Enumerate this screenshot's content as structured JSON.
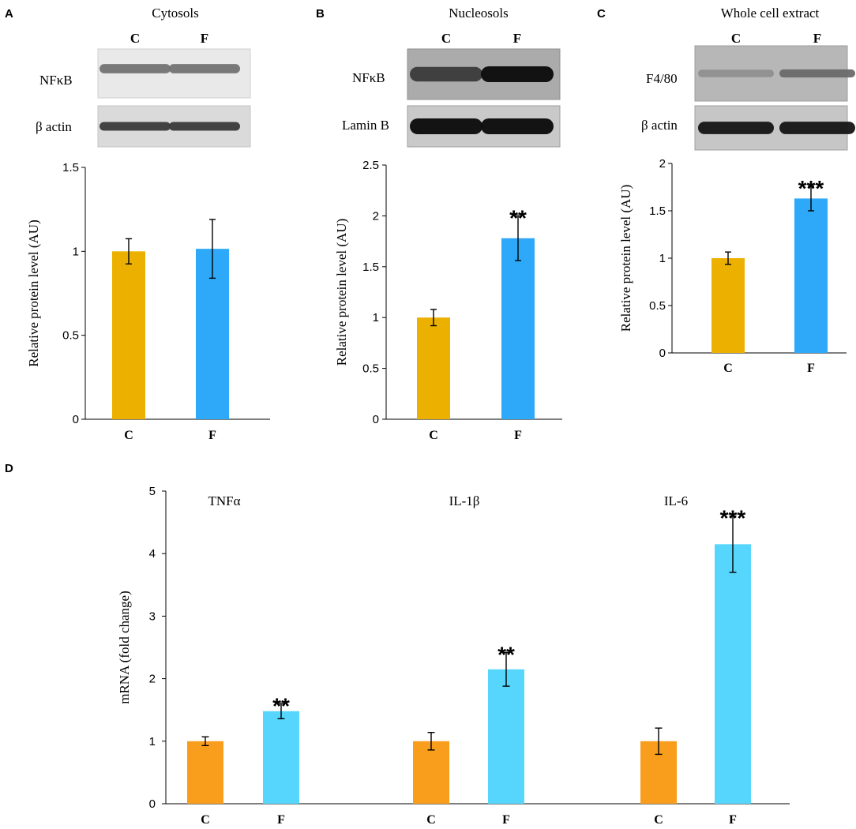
{
  "panels": [
    {
      "letter": "A",
      "title": "Cytosols",
      "lane_labels": [
        "C",
        "F"
      ],
      "blots": [
        {
          "label": "NFκB",
          "intensities": [
            0.45,
            0.45
          ]
        },
        {
          "label": "β actin",
          "intensities": [
            0.75,
            0.75
          ]
        }
      ]
    },
    {
      "letter": "B",
      "title": "Nucleosols",
      "lane_labels": [
        "C",
        "F"
      ],
      "blots": [
        {
          "label": "NFκB",
          "intensities": [
            0.75,
            1.0
          ]
        },
        {
          "label": "Lamin B",
          "intensities": [
            1.0,
            1.0
          ]
        }
      ]
    },
    {
      "letter": "C",
      "title": "Whole cell extract",
      "lane_labels": [
        "C",
        "F"
      ],
      "blots": [
        {
          "label": "F4/80",
          "intensities": [
            0.3,
            0.5
          ]
        },
        {
          "label": "β actin",
          "intensities": [
            0.95,
            0.95
          ]
        }
      ]
    },
    {
      "letter": "D",
      "title": "",
      "lane_labels": [],
      "blots": []
    }
  ],
  "chart_data": [
    {
      "panel": "A",
      "type": "bar",
      "categories": [
        "C",
        "F"
      ],
      "values": [
        1.0,
        1.015
      ],
      "errors": [
        0.075,
        0.175
      ],
      "significance": [
        "",
        ""
      ],
      "colors": [
        "#ecb000",
        "#2ea8f8"
      ],
      "ylabel": "Relative  protein level (AU)",
      "ylim": [
        0,
        1.5
      ],
      "yticks": [
        0,
        0.5,
        1,
        1.5
      ],
      "ytick_labels": [
        "0",
        "0.5",
        "1",
        "1.5"
      ]
    },
    {
      "panel": "B",
      "type": "bar",
      "categories": [
        "C",
        "F"
      ],
      "values": [
        1.0,
        1.78
      ],
      "errors": [
        0.08,
        0.22
      ],
      "significance": [
        "",
        "**"
      ],
      "colors": [
        "#ecb000",
        "#2ea8f8"
      ],
      "ylabel": "Relative  protein level (AU)",
      "ylim": [
        0,
        2.5
      ],
      "yticks": [
        0,
        0.5,
        1,
        1.5,
        2,
        2.5
      ],
      "ytick_labels": [
        "0",
        "0.5",
        "1",
        "1.5",
        "2",
        "2.5"
      ]
    },
    {
      "panel": "C",
      "type": "bar",
      "categories": [
        "C",
        "F"
      ],
      "values": [
        1.0,
        1.63
      ],
      "errors": [
        0.065,
        0.13
      ],
      "significance": [
        "",
        "***"
      ],
      "colors": [
        "#ecb000",
        "#2ea8f8"
      ],
      "ylabel": "Relative protein level (AU)",
      "ylim": [
        0,
        2
      ],
      "yticks": [
        0,
        0.5,
        1,
        1.5,
        2
      ],
      "ytick_labels": [
        "0",
        "0.5",
        "1",
        "1.5",
        "2"
      ]
    },
    {
      "panel": "D",
      "type": "bar",
      "groups": [
        "TNFα",
        "IL-1β",
        "IL-6"
      ],
      "categories": [
        "C",
        "F",
        "C",
        "F",
        "C",
        "F"
      ],
      "values": [
        1.0,
        1.48,
        1.0,
        2.15,
        1.0,
        4.15
      ],
      "errors": [
        0.07,
        0.12,
        0.14,
        0.27,
        0.21,
        0.45
      ],
      "significance": [
        "",
        "**",
        "",
        "**",
        "",
        "***"
      ],
      "colors": [
        "#f99d1c",
        "#56d6fc",
        "#f99d1c",
        "#56d6fc",
        "#f99d1c",
        "#56d6fc"
      ],
      "ylabel": "mRNA (fold change)",
      "ylim": [
        0,
        5
      ],
      "yticks": [
        0,
        1,
        2,
        3,
        4,
        5
      ],
      "ytick_labels": [
        "0",
        "1",
        "2",
        "3",
        "4",
        "5"
      ]
    }
  ]
}
